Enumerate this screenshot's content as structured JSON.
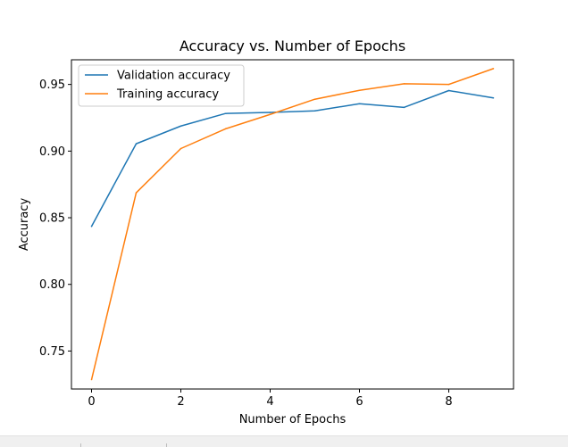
{
  "chart_data": {
    "type": "line",
    "title": "Accuracy vs. Number of Epochs",
    "xlabel": "Number of Epochs",
    "ylabel": "Accuracy",
    "x": [
      0,
      1,
      2,
      3,
      4,
      5,
      6,
      7,
      8,
      9
    ],
    "xlim": [
      -0.45,
      9.45
    ],
    "ylim": [
      0.7215,
      0.9685
    ],
    "xticks": [
      0,
      2,
      4,
      6,
      8
    ],
    "xtick_labels": [
      "0",
      "2",
      "4",
      "6",
      "8"
    ],
    "yticks": [
      0.75,
      0.8,
      0.85,
      0.9,
      0.95
    ],
    "ytick_labels": [
      "0.75",
      "0.80",
      "0.85",
      "0.90",
      "0.95"
    ],
    "grid": false,
    "legend_position": "upper-left",
    "series": [
      {
        "name": "Validation accuracy",
        "color": "#1f77b4",
        "values": [
          0.8435,
          0.9055,
          0.9188,
          0.9282,
          0.929,
          0.9302,
          0.9355,
          0.9328,
          0.9454,
          0.9399
        ]
      },
      {
        "name": "Training accuracy",
        "color": "#ff7f0e",
        "values": [
          0.7285,
          0.8687,
          0.9019,
          0.9167,
          0.9275,
          0.9389,
          0.9456,
          0.9505,
          0.95,
          0.9619
        ]
      }
    ]
  },
  "toolbar": {
    "icons": [
      "home-icon",
      "back-icon",
      "forward-icon",
      "pan-icon",
      "zoom-icon",
      "configure-icon",
      "save-icon"
    ]
  }
}
